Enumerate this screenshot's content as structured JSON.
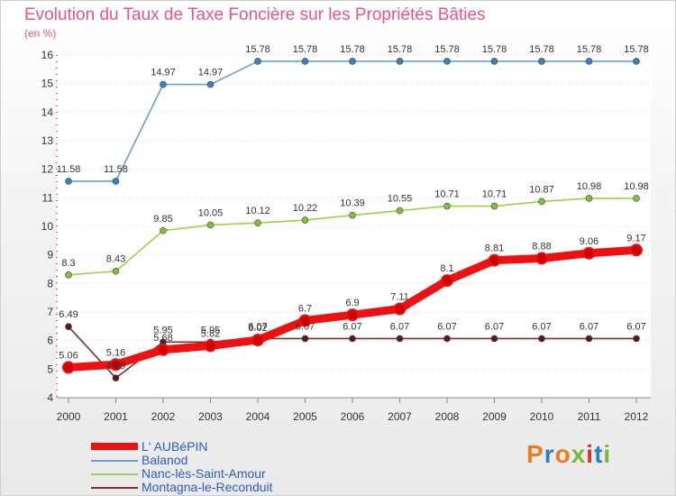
{
  "chart_data": {
    "type": "line",
    "title": "Evolution du Taux de Taxe Foncière sur les Propriétés Bâties",
    "ylabel": "(en %)",
    "xlabel": "",
    "x": [
      "2000",
      "2001",
      "2002",
      "2003",
      "2004",
      "2005",
      "2006",
      "2007",
      "2008",
      "2009",
      "2010",
      "2011",
      "2012"
    ],
    "ylim": [
      4,
      16
    ],
    "yticks": [
      "4",
      "5",
      "6",
      "7",
      "8",
      "9",
      "10",
      "11",
      "12",
      "13",
      "14",
      "15",
      "16"
    ],
    "series": [
      {
        "name": "L' AUBéPIN",
        "color": "#ee1111",
        "dot": "#cc0000",
        "values": [
          5.06,
          5.16,
          5.68,
          5.82,
          6.02,
          6.7,
          6.9,
          7.11,
          8.1,
          8.81,
          8.88,
          9.06,
          9.17
        ],
        "labels": [
          "5.06",
          "5.16",
          "5.68",
          "5.82",
          "6.02",
          "6.7",
          "6.9",
          "7.11",
          "8.1",
          "8.81",
          "8.88",
          "9.06",
          "9.17"
        ]
      },
      {
        "name": "Balanod",
        "color": "#6a9fd4",
        "dot": "#3a7fc4",
        "values": [
          11.58,
          11.58,
          14.97,
          14.97,
          15.78,
          15.78,
          15.78,
          15.78,
          15.78,
          15.78,
          15.78,
          15.78,
          15.78
        ],
        "labels": [
          "11.58",
          "11.58",
          "14.97",
          "14.97",
          "15.78",
          "15.78",
          "15.78",
          "15.78",
          "15.78",
          "15.78",
          "15.78",
          "15.78",
          "15.78"
        ]
      },
      {
        "name": "Nanc-lès-Saint-Amour",
        "color": "#9ad24a",
        "dot": "#7cc23a",
        "values": [
          8.3,
          8.43,
          9.85,
          10.05,
          10.12,
          10.22,
          10.39,
          10.55,
          10.71,
          10.71,
          10.87,
          10.98,
          10.98
        ],
        "labels": [
          "8.3",
          "8.43",
          "9.85",
          "10.05",
          "10.12",
          "10.22",
          "10.39",
          "10.55",
          "10.71",
          "10.71",
          "10.87",
          "10.98",
          "10.98"
        ]
      },
      {
        "name": "Montagna-le-Reconduit",
        "color": "#7a3030",
        "dot": "#5a1a1a",
        "values": [
          6.49,
          4.69,
          5.95,
          5.95,
          6.07,
          6.07,
          6.07,
          6.07,
          6.07,
          6.07,
          6.07,
          6.07,
          6.07
        ],
        "labels": [
          "6.49",
          "4.69",
          "5.95",
          "5.95",
          "6.07",
          "6.07",
          "6.07",
          "6.07",
          "6.07",
          "6.07",
          "6.07",
          "6.07",
          "6.07"
        ]
      }
    ]
  },
  "legend": {
    "items": [
      "L' AUBéPIN",
      "Balanod",
      "Nanc-lès-Saint-Amour",
      "Montagna-le-Reconduit"
    ]
  },
  "logo": {
    "text": "Proxiti"
  }
}
